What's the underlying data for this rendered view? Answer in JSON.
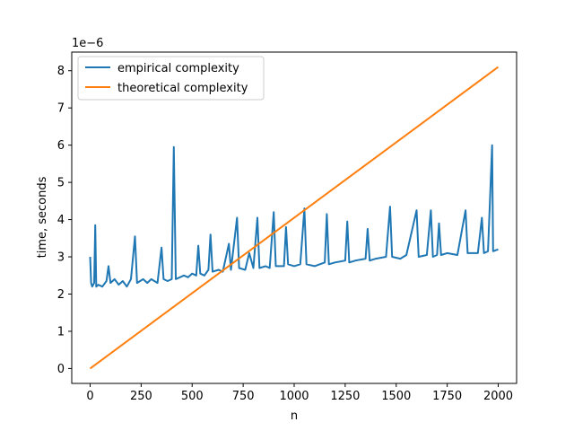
{
  "chart_data": {
    "type": "line",
    "title": "",
    "xlabel": "n",
    "ylabel": "time, seconds",
    "y_offset_label": "1e−6",
    "xlim": [
      -90,
      2090
    ],
    "ylim": [
      -0.4,
      8.5
    ],
    "x_ticks": [
      0,
      250,
      500,
      750,
      1000,
      1250,
      1500,
      1750,
      2000
    ],
    "x_tick_labels": [
      "0",
      "250",
      "500",
      "750",
      "1000",
      "1250",
      "1500",
      "1750",
      "2000"
    ],
    "y_ticks": [
      0,
      1,
      2,
      3,
      4,
      5,
      6,
      7,
      8
    ],
    "y_tick_labels": [
      "0",
      "1",
      "2",
      "3",
      "4",
      "5",
      "6",
      "7",
      "8"
    ],
    "legend_position": "top-left",
    "grid": false,
    "series": [
      {
        "name": "empirical complexity",
        "color": "#1f77b4",
        "points": [
          [
            0,
            3.0
          ],
          [
            5,
            2.3
          ],
          [
            10,
            2.2
          ],
          [
            20,
            2.3
          ],
          [
            25,
            3.85
          ],
          [
            30,
            2.2
          ],
          [
            40,
            2.25
          ],
          [
            60,
            2.2
          ],
          [
            80,
            2.35
          ],
          [
            90,
            2.75
          ],
          [
            100,
            2.3
          ],
          [
            120,
            2.4
          ],
          [
            140,
            2.25
          ],
          [
            160,
            2.35
          ],
          [
            180,
            2.2
          ],
          [
            200,
            2.4
          ],
          [
            220,
            3.55
          ],
          [
            230,
            2.3
          ],
          [
            260,
            2.4
          ],
          [
            280,
            2.3
          ],
          [
            300,
            2.4
          ],
          [
            330,
            2.3
          ],
          [
            350,
            3.25
          ],
          [
            360,
            2.4
          ],
          [
            380,
            2.35
          ],
          [
            400,
            2.4
          ],
          [
            410,
            5.95
          ],
          [
            420,
            2.4
          ],
          [
            440,
            2.45
          ],
          [
            460,
            2.5
          ],
          [
            480,
            2.45
          ],
          [
            500,
            2.55
          ],
          [
            520,
            2.5
          ],
          [
            530,
            3.3
          ],
          [
            540,
            2.55
          ],
          [
            560,
            2.5
          ],
          [
            580,
            2.65
          ],
          [
            590,
            3.6
          ],
          [
            600,
            2.6
          ],
          [
            630,
            2.65
          ],
          [
            650,
            2.6
          ],
          [
            680,
            3.35
          ],
          [
            690,
            2.65
          ],
          [
            720,
            4.05
          ],
          [
            730,
            2.7
          ],
          [
            760,
            2.65
          ],
          [
            780,
            3.1
          ],
          [
            800,
            2.7
          ],
          [
            820,
            4.05
          ],
          [
            830,
            2.7
          ],
          [
            860,
            2.75
          ],
          [
            880,
            2.7
          ],
          [
            900,
            4.2
          ],
          [
            910,
            2.75
          ],
          [
            950,
            2.75
          ],
          [
            960,
            3.8
          ],
          [
            970,
            2.8
          ],
          [
            1000,
            2.75
          ],
          [
            1030,
            2.8
          ],
          [
            1050,
            4.3
          ],
          [
            1060,
            2.8
          ],
          [
            1100,
            2.75
          ],
          [
            1150,
            2.85
          ],
          [
            1160,
            4.15
          ],
          [
            1170,
            2.8
          ],
          [
            1200,
            2.85
          ],
          [
            1250,
            2.9
          ],
          [
            1260,
            3.95
          ],
          [
            1270,
            2.85
          ],
          [
            1300,
            2.9
          ],
          [
            1350,
            2.95
          ],
          [
            1360,
            3.75
          ],
          [
            1370,
            2.9
          ],
          [
            1400,
            2.95
          ],
          [
            1450,
            3.0
          ],
          [
            1470,
            4.35
          ],
          [
            1480,
            3.0
          ],
          [
            1520,
            2.95
          ],
          [
            1550,
            3.05
          ],
          [
            1600,
            4.25
          ],
          [
            1610,
            3.0
          ],
          [
            1650,
            3.05
          ],
          [
            1670,
            4.25
          ],
          [
            1680,
            3.0
          ],
          [
            1700,
            3.05
          ],
          [
            1710,
            3.9
          ],
          [
            1720,
            3.05
          ],
          [
            1750,
            3.1
          ],
          [
            1800,
            3.05
          ],
          [
            1840,
            4.25
          ],
          [
            1850,
            3.1
          ],
          [
            1900,
            3.1
          ],
          [
            1920,
            4.05
          ],
          [
            1930,
            3.1
          ],
          [
            1950,
            3.15
          ],
          [
            1970,
            6.0
          ],
          [
            1975,
            3.15
          ],
          [
            2000,
            3.2
          ]
        ]
      },
      {
        "name": "theoretical complexity",
        "color": "#ff7f0e",
        "points": [
          [
            0,
            0.0
          ],
          [
            2000,
            8.1
          ]
        ]
      }
    ]
  }
}
